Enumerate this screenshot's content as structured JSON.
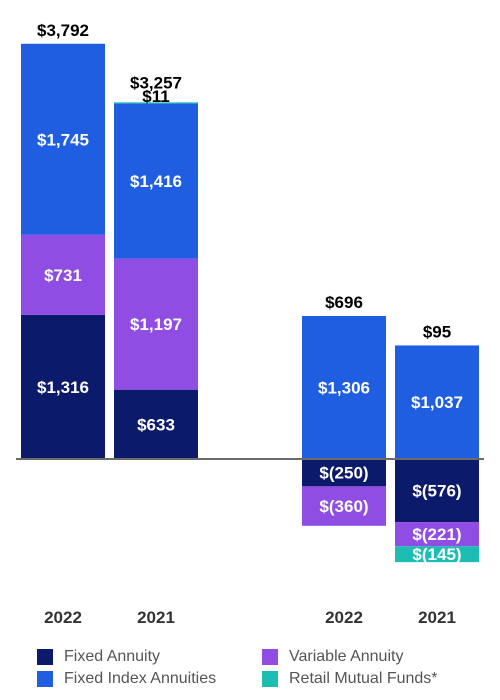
{
  "chart_data": {
    "type": "bar",
    "stacked": true,
    "groups": [
      {
        "categories": [
          "2022",
          "2021"
        ],
        "totals": [
          "$3,792",
          "$3,257"
        ],
        "series": [
          {
            "name": "Fixed Annuity",
            "values": [
              1316,
              633
            ],
            "labels": [
              "$1,316",
              "$633"
            ]
          },
          {
            "name": "Variable Annuity",
            "values": [
              731,
              1197
            ],
            "labels": [
              "$731",
              "$1,197"
            ]
          },
          {
            "name": "Fixed Index Annuities",
            "values": [
              1745,
              1416
            ],
            "labels": [
              "$1,745",
              "$1,416"
            ]
          },
          {
            "name": "Retail Mutual Funds*",
            "values": [
              0,
              11
            ],
            "labels": [
              "",
              "$11"
            ]
          }
        ]
      },
      {
        "categories": [
          "2022",
          "2021"
        ],
        "totals": [
          "$696",
          "$95"
        ],
        "series": [
          {
            "name": "Fixed Annuity",
            "values": [
              -250,
              -576
            ],
            "labels": [
              "$(250)",
              "$(576)"
            ]
          },
          {
            "name": "Variable Annuity",
            "values": [
              -360,
              -221
            ],
            "labels": [
              "$(360)",
              "$(221)"
            ]
          },
          {
            "name": "Fixed Index Annuities",
            "values": [
              1306,
              1037
            ],
            "labels": [
              "$1,306",
              "$1,037"
            ]
          },
          {
            "name": "Retail Mutual Funds*",
            "values": [
              0,
              -145
            ],
            "labels": [
              "",
              "$(145)"
            ]
          }
        ]
      }
    ],
    "legend": {
      "position": "bottom",
      "entries": [
        "Fixed Annuity",
        "Variable Annuity",
        "Fixed Index Annuities",
        "Retail Mutual Funds*"
      ]
    },
    "colors": {
      "Fixed Annuity": "#0c1a6b",
      "Variable Annuity": "#8f4de3",
      "Fixed Index Annuities": "#1f5ee0",
      "Retail Mutual Funds*": "#1dbdb3",
      "axis": "#6b6b6b"
    },
    "grid": false
  }
}
